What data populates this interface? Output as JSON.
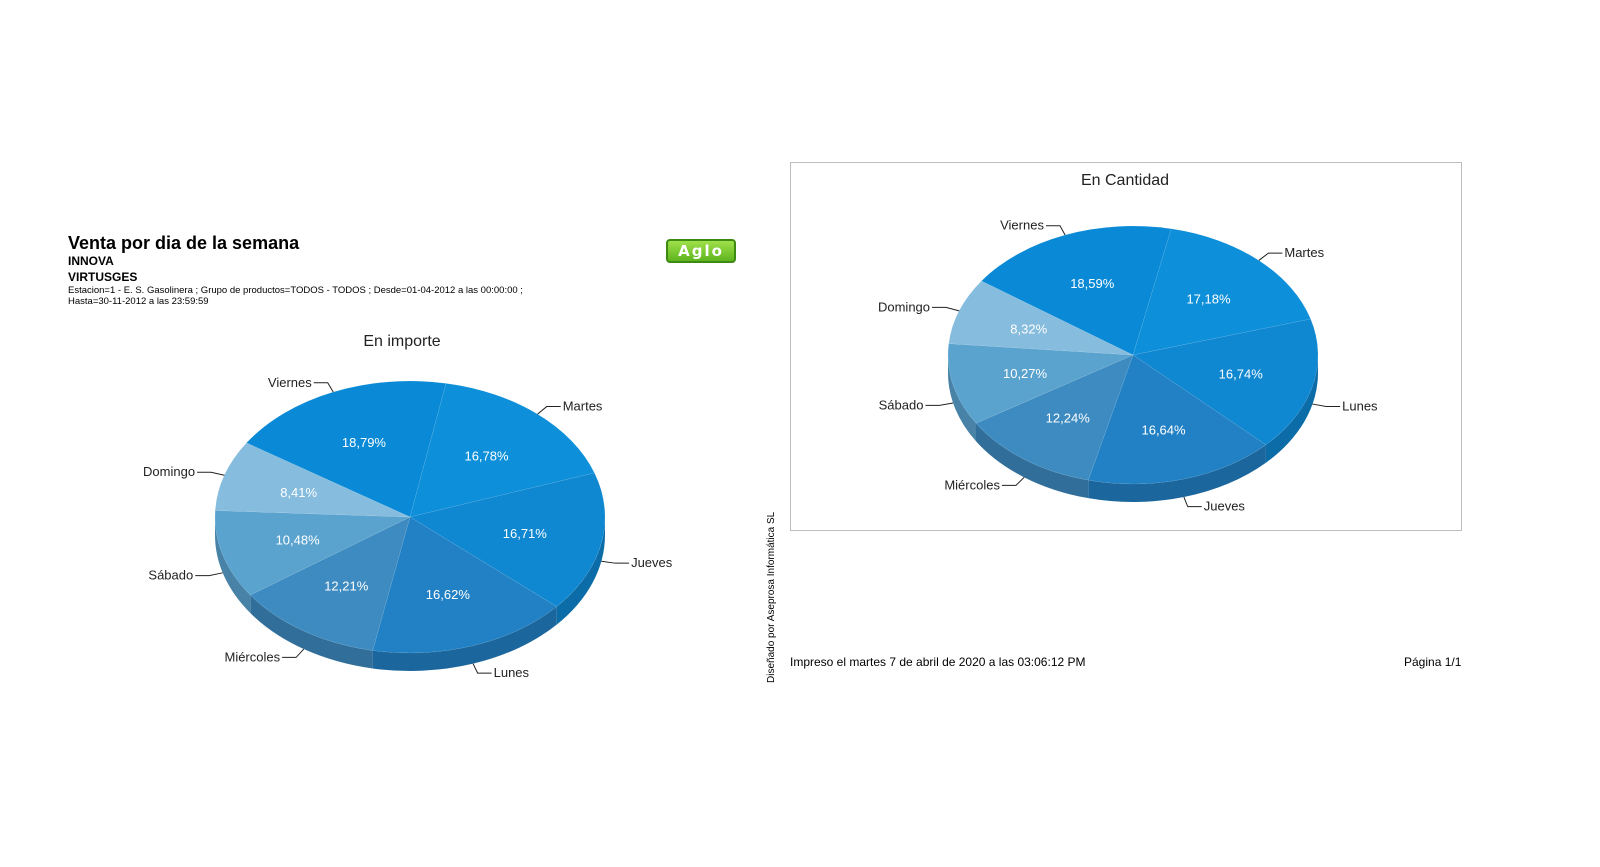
{
  "header": {
    "title": "Venta por dia de la semana",
    "company": "INNOVA",
    "system": "VIRTUSGES",
    "filters": "Estacion=1 - E. S. Gasolinera ; Grupo de productos=TODOS - TODOS ; Desde=01-04-2012 a las 00:00:00 ; Hasta=30-11-2012 a las 23:59:59",
    "logo_text": "Aglo"
  },
  "footer": {
    "printed": "Impreso el martes 7 de abril de 2020 a las 03:06:12 PM",
    "page": "Página 1/1",
    "designer": "Diseñado por Aseprosa Informática SL"
  },
  "colors": {
    "slices": [
      "#0a8ad6",
      "#0d8fd9",
      "#0f87d1",
      "#2281c4",
      "#3d8bc0",
      "#5aa3cf",
      "#86bcdd"
    ]
  },
  "chart_data": [
    {
      "type": "pie",
      "title": "En importe",
      "slices": [
        {
          "label": "Viernes",
          "value": 18.79,
          "text": "18,79%"
        },
        {
          "label": "Martes",
          "value": 16.78,
          "text": "16,78%"
        },
        {
          "label": "Jueves",
          "value": 16.71,
          "text": "16,71%"
        },
        {
          "label": "Lunes",
          "value": 16.62,
          "text": "16,62%"
        },
        {
          "label": "Miércoles",
          "value": 12.21,
          "text": "12,21%"
        },
        {
          "label": "Sábado",
          "value": 10.48,
          "text": "10,48%"
        },
        {
          "label": "Domingo",
          "value": 8.41,
          "text": "8,41%"
        }
      ]
    },
    {
      "type": "pie",
      "title": "En Cantidad",
      "slices": [
        {
          "label": "Viernes",
          "value": 18.59,
          "text": "18,59%"
        },
        {
          "label": "Martes",
          "value": 17.18,
          "text": "17,18%"
        },
        {
          "label": "Lunes",
          "value": 16.74,
          "text": "16,74%"
        },
        {
          "label": "Jueves",
          "value": 16.64,
          "text": "16,64%"
        },
        {
          "label": "Miércoles",
          "value": 12.24,
          "text": "12,24%"
        },
        {
          "label": "Sábado",
          "value": 10.27,
          "text": "10,27%"
        },
        {
          "label": "Domingo",
          "value": 8.32,
          "text": "8,32%"
        }
      ]
    }
  ]
}
